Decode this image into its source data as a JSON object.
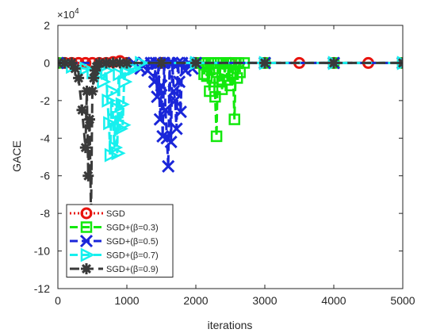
{
  "chart_data": {
    "type": "line",
    "title": "",
    "xlabel": "iterations",
    "ylabel": "GACE",
    "exponent_label": "×10",
    "exponent_power": "4",
    "xlim": [
      0,
      5000
    ],
    "ylim": [
      -12,
      2
    ],
    "xticks": [
      0,
      1000,
      2000,
      3000,
      4000,
      5000
    ],
    "yticks": [
      2,
      0,
      -2,
      -4,
      -6,
      -8,
      -10,
      -12
    ],
    "legend_position": "bottom-left",
    "grid": false,
    "series": [
      {
        "name": "SGD",
        "color": "#e8130e",
        "dash": "2,3",
        "marker": "circle",
        "x": [
          0,
          100,
          200,
          300,
          400,
          500,
          600,
          700,
          800,
          900,
          1000,
          1500,
          2000,
          2500,
          3000,
          3500,
          4000,
          4500,
          5000
        ],
        "y": [
          0,
          0,
          0,
          0,
          0,
          0,
          0,
          0,
          0.05,
          0.1,
          0,
          0,
          0,
          0,
          0,
          0,
          0,
          0,
          0
        ]
      },
      {
        "name": "SGD+(β=0.3)",
        "color": "#13e80d",
        "dash": "10,5",
        "marker": "square",
        "x": [
          0,
          2000,
          2100,
          2120,
          2140,
          2160,
          2180,
          2200,
          2220,
          2240,
          2260,
          2280,
          2300,
          2320,
          2340,
          2360,
          2380,
          2400,
          2420,
          2440,
          2460,
          2480,
          2500,
          2520,
          2540,
          2560,
          2580,
          2600,
          2620,
          2640,
          2700,
          3000,
          4000,
          5000
        ],
        "y": [
          0,
          0,
          0,
          -0.6,
          0,
          -0.7,
          0,
          -1.5,
          0,
          -0.8,
          0,
          -1.8,
          -3.9,
          0,
          -1.0,
          0,
          -1.4,
          0,
          -0.5,
          0,
          -0.9,
          0,
          -1.2,
          0,
          -0.6,
          -3.0,
          0,
          -0.8,
          0,
          -0.5,
          0,
          0,
          0,
          0
        ]
      },
      {
        "name": "SGD+(β=0.5)",
        "color": "#1a26d9",
        "dash": "10,5",
        "marker": "x",
        "x": [
          0,
          1100,
          1200,
          1250,
          1300,
          1350,
          1400,
          1420,
          1440,
          1460,
          1480,
          1500,
          1520,
          1540,
          1560,
          1580,
          1600,
          1620,
          1640,
          1660,
          1680,
          1700,
          1720,
          1740,
          1760,
          1780,
          1800,
          1850,
          1900,
          1950,
          2000,
          3000,
          4000,
          5000
        ],
        "y": [
          0,
          0,
          -0.3,
          0,
          -0.4,
          0,
          -1.0,
          0,
          -1.8,
          0,
          -3.0,
          -1.2,
          -3.9,
          0,
          -2.5,
          -4.0,
          -5.5,
          0,
          -4.2,
          0,
          -1.5,
          -2.0,
          -3.5,
          0,
          -1.0,
          -2.6,
          0,
          -0.4,
          0,
          -0.3,
          0,
          0,
          0,
          0
        ]
      },
      {
        "name": "SGD+(β=0.7)",
        "color": "#17f0ee",
        "dash": "10,5",
        "marker": "triangle-right",
        "x": [
          0,
          200,
          400,
          500,
          600,
          650,
          700,
          720,
          740,
          760,
          780,
          800,
          820,
          840,
          860,
          880,
          900,
          920,
          940,
          960,
          980,
          1000,
          1100,
          1200,
          2000,
          3000,
          4000,
          5000
        ],
        "y": [
          0,
          -0.2,
          -0.3,
          -0.5,
          -0.3,
          -1.0,
          -0.4,
          -2.0,
          -3.2,
          -4.9,
          -1.5,
          -3.0,
          -4.5,
          -2.4,
          -4.8,
          -0.6,
          -3.5,
          -2.2,
          -3.3,
          -1.0,
          -0.5,
          -0.4,
          -0.3,
          0,
          0,
          0,
          0,
          0
        ]
      },
      {
        "name": "SGD+(β=0.9)",
        "color": "#3a3a3a",
        "dash": "12,6",
        "marker": "star",
        "x": [
          0,
          100,
          200,
          250,
          300,
          350,
          400,
          420,
          440,
          460,
          480,
          500,
          520,
          540,
          560,
          600,
          700,
          800,
          900,
          1000,
          1500,
          2000,
          3000,
          4000,
          5000
        ],
        "y": [
          0,
          0,
          0,
          -0.3,
          -0.8,
          -2.5,
          -4.5,
          -1.5,
          -6.0,
          -3.0,
          -8.2,
          -1.5,
          -0.8,
          -0.4,
          -0.2,
          0,
          0,
          0,
          0,
          0,
          0,
          0,
          0,
          0,
          0
        ]
      }
    ]
  }
}
